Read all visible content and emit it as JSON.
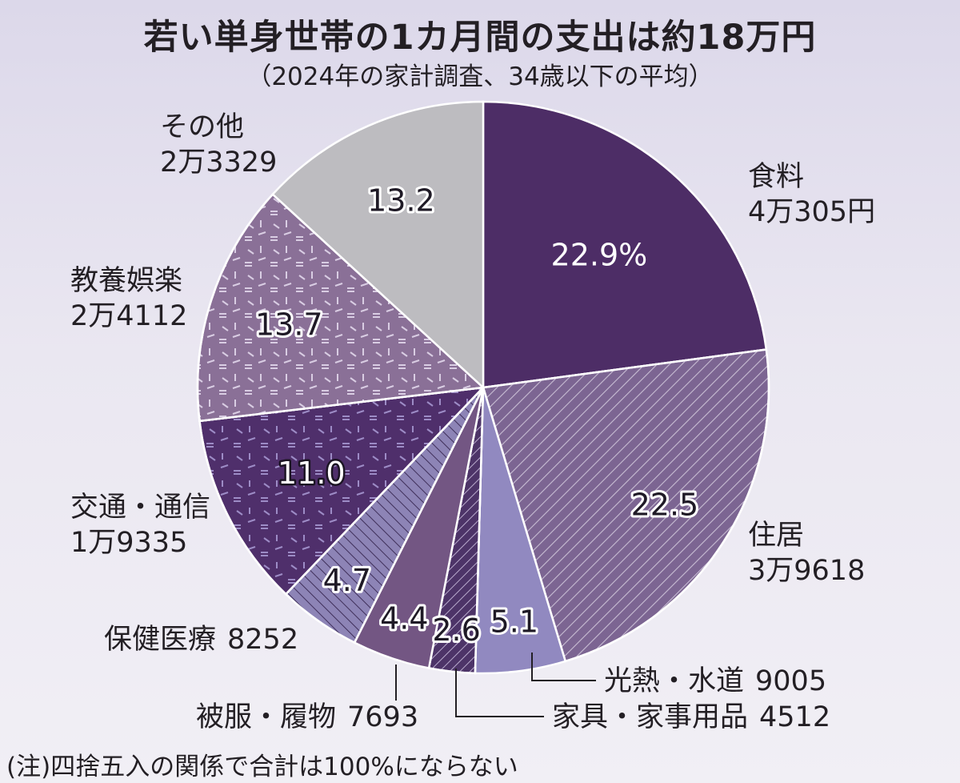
{
  "header": {
    "title": "若い単身世帯の1カ月間の支出は約18万円",
    "subtitle": "（2024年の家計調査、34歳以下の平均）"
  },
  "footer": {
    "note": "(注)四捨五入の関係で合計は100%にならない"
  },
  "chart_data": {
    "type": "pie",
    "title": "若い単身世帯の1カ月間の支出は約18万円",
    "subtitle": "（2024年の家計調査、34歳以下の平均）",
    "start_angle": "12 o'clock, clockwise",
    "slices": [
      {
        "name": "食料",
        "amount": "4万305円",
        "value_yen": 40305,
        "pct": 22.9,
        "pct_label": "22.9%",
        "color": "#4d2d66",
        "pattern": "solid"
      },
      {
        "name": "住居",
        "amount": "3万9618",
        "value_yen": 39618,
        "pct": 22.5,
        "pct_label": "22.5",
        "color": "#7c6592",
        "pattern": "diagonal-hatch"
      },
      {
        "name": "光熱・水道",
        "amount": "9005",
        "value_yen": 9005,
        "pct": 5.1,
        "pct_label": "5.1",
        "color": "#9189c0",
        "pattern": "solid"
      },
      {
        "name": "家具・家事用品",
        "amount": "4512",
        "value_yen": 4512,
        "pct": 2.6,
        "pct_label": "2.6",
        "color": "#4d3468",
        "pattern": "diagonal-hatch"
      },
      {
        "name": "被服・履物",
        "amount": "7693",
        "value_yen": 7693,
        "pct": 4.4,
        "pct_label": "4.4",
        "color": "#735683",
        "pattern": "solid"
      },
      {
        "name": "保健医療",
        "amount": "8252",
        "value_yen": 8252,
        "pct": 4.7,
        "pct_label": "4.7",
        "color": "#8d84b6",
        "pattern": "diagonal-hatch"
      },
      {
        "name": "交通・通信",
        "amount": "1万9335",
        "value_yen": 19335,
        "pct": 11.0,
        "pct_label": "11.0",
        "color": "#4f2f6b",
        "pattern": "dashes"
      },
      {
        "name": "教養娯楽",
        "amount": "2万4112",
        "value_yen": 24112,
        "pct": 13.7,
        "pct_label": "13.7",
        "color": "#8a7097",
        "pattern": "dashes"
      },
      {
        "name": "その他",
        "amount": "2万3329",
        "value_yen": 23329,
        "pct": 13.2,
        "pct_label": "13.2",
        "color": "#bdbcc0",
        "pattern": "solid"
      }
    ]
  }
}
